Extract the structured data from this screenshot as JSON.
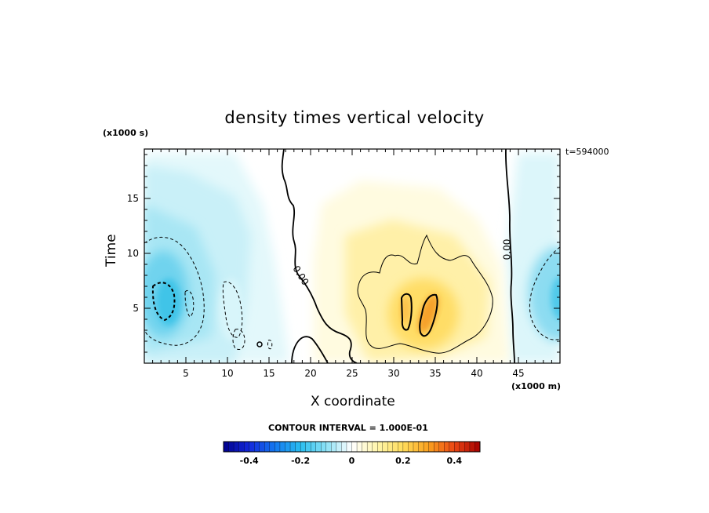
{
  "chart_data": {
    "type": "heatmap",
    "title": "density times vertical velocity",
    "xlabel": "X coordinate",
    "ylabel": "Time",
    "x_unit_label": "(x1000 m)",
    "y_unit_label": "(x1000 s)",
    "time_label": "t=594000",
    "xlim": [
      0,
      50
    ],
    "ylim": [
      0,
      19.5
    ],
    "xticks": [
      "5",
      "10",
      "15",
      "20",
      "25",
      "30",
      "35",
      "40",
      "45"
    ],
    "yticks": [
      "5",
      "10",
      "15"
    ],
    "contour_interval_label": "CONTOUR INTERVAL = 1.000E-01",
    "contour_labels": [
      "0.00",
      "0.00"
    ],
    "colorbar": {
      "range": [
        -0.5,
        0.5
      ],
      "ticks": [
        "-0.4",
        "-0.2",
        "0",
        "0.2",
        "0.4"
      ]
    },
    "features": [
      {
        "kind": "negative",
        "x": 3,
        "y": 6,
        "peak": -0.25
      },
      {
        "kind": "negative",
        "x": 49.5,
        "y": 6,
        "peak": -0.2
      },
      {
        "kind": "negative",
        "x": 10,
        "y": 6,
        "peak": -0.05
      },
      {
        "kind": "positive",
        "x": 34,
        "y": 5,
        "peak": 0.25
      },
      {
        "kind": "positive",
        "x": 31.5,
        "y": 5.5,
        "peak": 0.2
      }
    ]
  }
}
